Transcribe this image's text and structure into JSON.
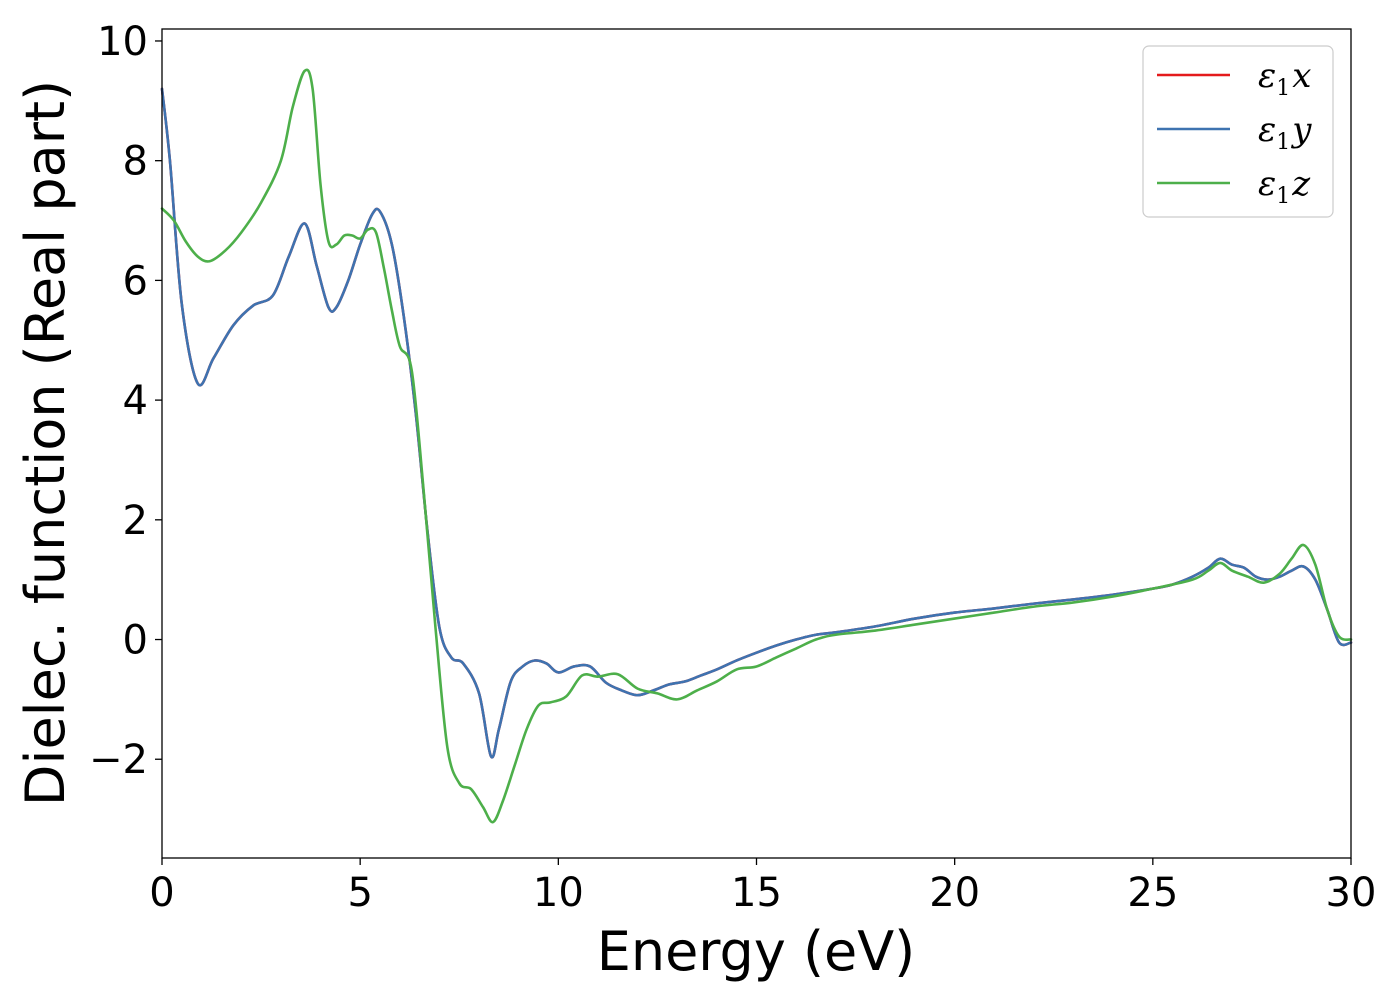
{
  "chart_data": {
    "type": "line",
    "title": "",
    "xlabel": "Energy (eV)",
    "ylabel": "Dielec. function (Real part)",
    "xlim": [
      0,
      30
    ],
    "ylim": [
      -3.65,
      10.2
    ],
    "xticks": [
      0,
      5,
      10,
      15,
      20,
      25,
      30
    ],
    "xtick_labels": [
      "0",
      "5",
      "10",
      "15",
      "20",
      "25",
      "30"
    ],
    "yticks": [
      -2,
      0,
      2,
      4,
      6,
      8,
      10
    ],
    "ytick_labels": [
      "−2",
      "0",
      "2",
      "4",
      "6",
      "8",
      "10"
    ],
    "grid": false,
    "legend_position": "top-right",
    "series": [
      {
        "name": "ε1x",
        "legend_symbol": "ε",
        "legend_sub": "1",
        "legend_var": "x",
        "color": "#e41a1c",
        "x": [
          0,
          0.2,
          0.5,
          0.9,
          1.3,
          1.8,
          2.3,
          2.8,
          3.2,
          3.6,
          3.9,
          4.2,
          4.4,
          4.7,
          5.0,
          5.3,
          5.5,
          5.8,
          6.1,
          6.4,
          6.7,
          7.0,
          7.3,
          7.6,
          8.0,
          8.3,
          8.5,
          8.8,
          9.1,
          9.4,
          9.7,
          10.0,
          10.4,
          10.8,
          11.2,
          11.6,
          12.0,
          12.4,
          12.8,
          13.2,
          13.6,
          14.0,
          14.5,
          15.0,
          15.5,
          16.0,
          16.5,
          17.0,
          18.0,
          19.0,
          20.0,
          21.0,
          22.0,
          23.0,
          24.0,
          25.0,
          25.5,
          26.0,
          26.4,
          26.7,
          27.0,
          27.3,
          27.6,
          27.9,
          28.2,
          28.5,
          28.8,
          29.1,
          29.4,
          29.7,
          30.0
        ],
        "y": [
          9.2,
          8.0,
          5.6,
          4.28,
          4.7,
          5.25,
          5.58,
          5.75,
          6.4,
          6.95,
          6.25,
          5.55,
          5.55,
          6.0,
          6.6,
          7.1,
          7.15,
          6.6,
          5.4,
          3.8,
          1.8,
          0.2,
          -0.3,
          -0.4,
          -0.9,
          -1.95,
          -1.5,
          -0.7,
          -0.45,
          -0.35,
          -0.4,
          -0.55,
          -0.45,
          -0.45,
          -0.72,
          -0.85,
          -0.93,
          -0.85,
          -0.75,
          -0.7,
          -0.6,
          -0.5,
          -0.35,
          -0.22,
          -0.1,
          0.0,
          0.08,
          0.12,
          0.22,
          0.35,
          0.45,
          0.52,
          0.6,
          0.67,
          0.75,
          0.85,
          0.92,
          1.05,
          1.2,
          1.35,
          1.25,
          1.2,
          1.05,
          1.0,
          1.05,
          1.15,
          1.22,
          1.0,
          0.5,
          -0.05,
          -0.05
        ]
      },
      {
        "name": "ε1y",
        "legend_symbol": "ε",
        "legend_sub": "1",
        "legend_var": "y",
        "color": "#3e73b0",
        "x": [
          0,
          0.2,
          0.5,
          0.9,
          1.3,
          1.8,
          2.3,
          2.8,
          3.2,
          3.6,
          3.9,
          4.2,
          4.4,
          4.7,
          5.0,
          5.3,
          5.5,
          5.8,
          6.1,
          6.4,
          6.7,
          7.0,
          7.3,
          7.6,
          8.0,
          8.3,
          8.5,
          8.8,
          9.1,
          9.4,
          9.7,
          10.0,
          10.4,
          10.8,
          11.2,
          11.6,
          12.0,
          12.4,
          12.8,
          13.2,
          13.6,
          14.0,
          14.5,
          15.0,
          15.5,
          16.0,
          16.5,
          17.0,
          18.0,
          19.0,
          20.0,
          21.0,
          22.0,
          23.0,
          24.0,
          25.0,
          25.5,
          26.0,
          26.4,
          26.7,
          27.0,
          27.3,
          27.6,
          27.9,
          28.2,
          28.5,
          28.8,
          29.1,
          29.4,
          29.7,
          30.0
        ],
        "y": [
          9.2,
          8.0,
          5.6,
          4.28,
          4.7,
          5.25,
          5.58,
          5.75,
          6.4,
          6.95,
          6.25,
          5.55,
          5.55,
          6.0,
          6.6,
          7.1,
          7.15,
          6.6,
          5.4,
          3.8,
          1.8,
          0.2,
          -0.3,
          -0.4,
          -0.9,
          -1.95,
          -1.5,
          -0.7,
          -0.45,
          -0.35,
          -0.4,
          -0.55,
          -0.45,
          -0.45,
          -0.72,
          -0.85,
          -0.93,
          -0.85,
          -0.75,
          -0.7,
          -0.6,
          -0.5,
          -0.35,
          -0.22,
          -0.1,
          0.0,
          0.08,
          0.12,
          0.22,
          0.35,
          0.45,
          0.52,
          0.6,
          0.67,
          0.75,
          0.85,
          0.92,
          1.05,
          1.2,
          1.35,
          1.25,
          1.2,
          1.05,
          1.0,
          1.05,
          1.15,
          1.22,
          1.0,
          0.5,
          -0.05,
          -0.05
        ]
      },
      {
        "name": "ε1z",
        "legend_symbol": "ε",
        "legend_sub": "1",
        "legend_var": "z",
        "color": "#4daf4a",
        "x": [
          0,
          0.3,
          0.6,
          0.9,
          1.2,
          1.6,
          2.0,
          2.5,
          3.0,
          3.3,
          3.6,
          3.8,
          4.0,
          4.2,
          4.4,
          4.6,
          4.8,
          5.0,
          5.2,
          5.4,
          5.6,
          5.8,
          6.0,
          6.3,
          6.6,
          6.9,
          7.2,
          7.5,
          7.8,
          8.1,
          8.35,
          8.6,
          8.9,
          9.2,
          9.5,
          9.8,
          10.2,
          10.6,
          11.0,
          11.5,
          12.0,
          12.5,
          13.0,
          13.5,
          14.0,
          14.5,
          15.0,
          15.5,
          16.0,
          16.5,
          17.0,
          18.0,
          19.0,
          20.0,
          21.0,
          22.0,
          23.0,
          24.0,
          25.0,
          26.0,
          26.4,
          26.7,
          27.0,
          27.4,
          27.8,
          28.2,
          28.5,
          28.8,
          29.1,
          29.4,
          29.7,
          30.0
        ],
        "y": [
          7.2,
          7.0,
          6.65,
          6.4,
          6.32,
          6.5,
          6.8,
          7.3,
          8.0,
          8.9,
          9.5,
          9.2,
          7.6,
          6.65,
          6.6,
          6.75,
          6.75,
          6.7,
          6.85,
          6.8,
          6.2,
          5.5,
          4.9,
          4.5,
          2.5,
          0.2,
          -1.8,
          -2.4,
          -2.5,
          -2.8,
          -3.05,
          -2.7,
          -2.1,
          -1.5,
          -1.1,
          -1.05,
          -0.95,
          -0.6,
          -0.62,
          -0.58,
          -0.82,
          -0.9,
          -1.0,
          -0.85,
          -0.7,
          -0.5,
          -0.45,
          -0.3,
          -0.15,
          0.0,
          0.08,
          0.15,
          0.25,
          0.35,
          0.45,
          0.55,
          0.62,
          0.72,
          0.85,
          1.0,
          1.15,
          1.28,
          1.15,
          1.05,
          0.95,
          1.1,
          1.35,
          1.58,
          1.25,
          0.5,
          0.05,
          0.0
        ]
      }
    ]
  }
}
